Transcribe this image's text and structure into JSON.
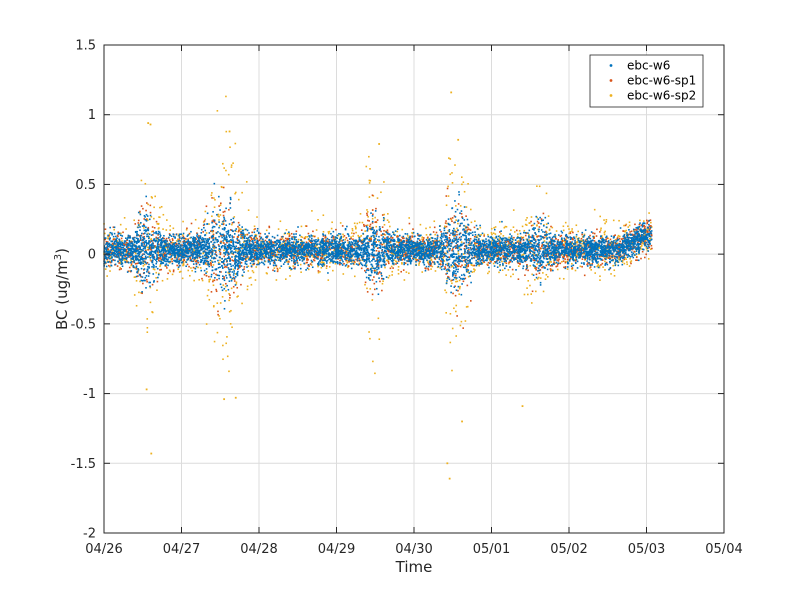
{
  "chart_data": {
    "type": "scatter",
    "xlabel": "Time",
    "ylabel_main": "BC (ug/m",
    "ylabel_sup": "3",
    "ylabel_close": ")",
    "x_tick_labels": [
      "04/26",
      "04/27",
      "04/28",
      "04/29",
      "04/30",
      "05/01",
      "05/02",
      "05/03",
      "05/04"
    ],
    "xlim_days": [
      0,
      8
    ],
    "ylim": [
      -2,
      1.5
    ],
    "y_ticks": [
      -2,
      -1.5,
      -1,
      -0.5,
      0,
      0.5,
      1,
      1.5
    ],
    "y_tick_labels": [
      "-2",
      "-1.5",
      "-1",
      "-0.5",
      "0",
      "0.5",
      "1",
      "1.5"
    ],
    "grid": true,
    "legend_position": "top-right",
    "data_extent_days": [
      0,
      7.07
    ],
    "series": [
      {
        "name": "ebc-w6",
        "color": "#0072BD",
        "baseline_spread": 0.05,
        "plume_spread_factor": 0.35
      },
      {
        "name": "ebc-w6-sp1",
        "color": "#D95319",
        "baseline_spread": 0.06,
        "plume_spread_factor": 0.5
      },
      {
        "name": "ebc-w6-sp2",
        "color": "#EDB120",
        "baseline_spread": 0.08,
        "plume_spread_factor": 1.0
      }
    ],
    "noise_episodes": [
      {
        "center_day": 0.55,
        "width_day": 0.12,
        "amplitude": 0.32
      },
      {
        "center_day": 1.55,
        "width_day": 0.2,
        "amplitude": 0.38
      },
      {
        "center_day": 3.5,
        "width_day": 0.13,
        "amplitude": 0.3
      },
      {
        "center_day": 4.55,
        "width_day": 0.13,
        "amplitude": 0.4
      },
      {
        "center_day": 5.6,
        "width_day": 0.13,
        "amplitude": 0.24
      }
    ],
    "outliers": [
      {
        "day": 4.48,
        "value": 1.16
      },
      {
        "day": 0.57,
        "value": 0.94
      },
      {
        "day": 0.6,
        "value": 0.93
      },
      {
        "day": 1.62,
        "value": 0.88
      },
      {
        "day": 3.55,
        "value": 0.79
      },
      {
        "day": 4.57,
        "value": 0.82
      },
      {
        "day": 1.55,
        "value": -1.04
      },
      {
        "day": 1.7,
        "value": -1.03
      },
      {
        "day": 0.55,
        "value": -0.97
      },
      {
        "day": 5.4,
        "value": -1.09
      },
      {
        "day": 4.62,
        "value": -1.2
      },
      {
        "day": 0.61,
        "value": -1.43
      },
      {
        "day": 4.43,
        "value": -1.5
      },
      {
        "day": 4.46,
        "value": -1.61
      }
    ]
  }
}
